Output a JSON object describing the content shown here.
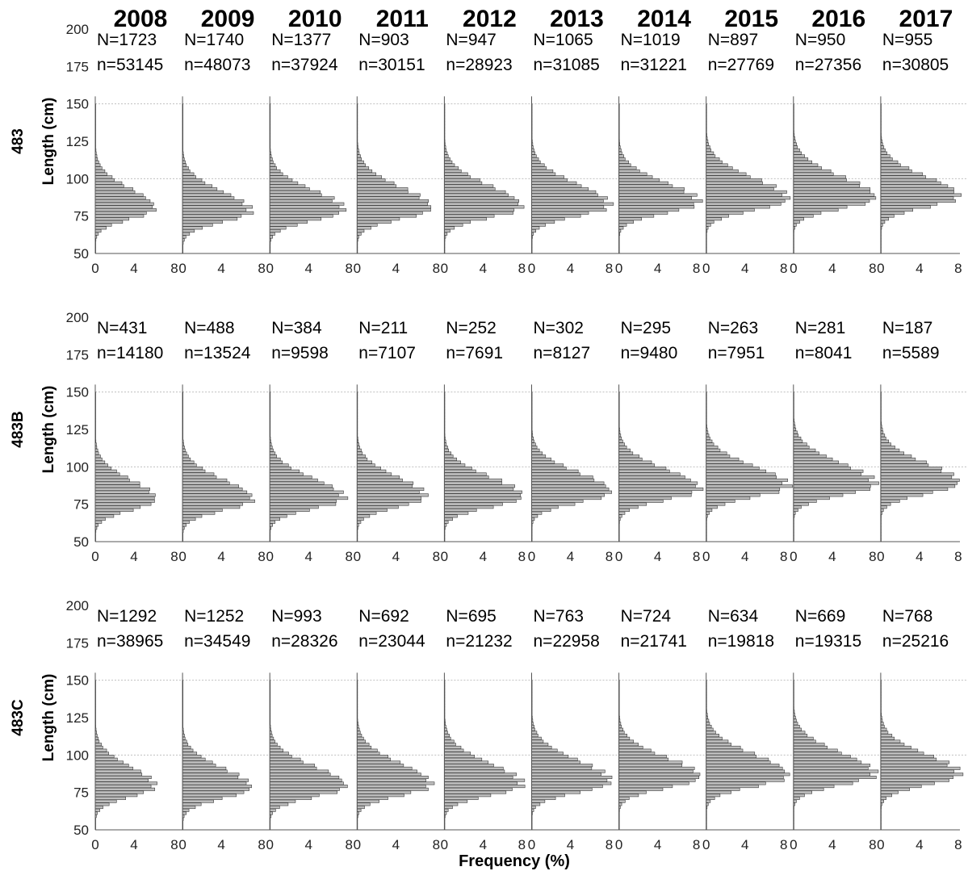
{
  "chart_data": {
    "type": "bar",
    "orientation": "horizontal-histogram",
    "xlabel": "Frequency (%)",
    "ylabel": "Length (cm)",
    "years": [
      "2008",
      "2009",
      "2010",
      "2011",
      "2012",
      "2013",
      "2014",
      "2015",
      "2016",
      "2017"
    ],
    "ylim": [
      50,
      200
    ],
    "yticks": [
      "50",
      "75",
      "100",
      "125",
      "150",
      "175",
      "200"
    ],
    "xticks_full": [
      "0",
      "4",
      "8"
    ],
    "xticks_trunc": [
      "0",
      "4"
    ],
    "xlim": [
      0,
      8
    ],
    "grid_y": [
      100,
      150
    ],
    "rows": [
      {
        "label": "483",
        "N": [
          "N=1723",
          "N=1740",
          "N=1377",
          "N=903",
          "N=947",
          "N=1065",
          "N=1019",
          "N=897",
          "N=950",
          "N=955"
        ],
        "n": [
          "n=53145",
          "n=48073",
          "n=37924",
          "n=30151",
          "n=28923",
          "n=31085",
          "n=31221",
          "n=27769",
          "n=27356",
          "n=30805"
        ],
        "peak": [
          80,
          78,
          79,
          80,
          81,
          82,
          84,
          86,
          87,
          88
        ],
        "max": [
          6.1,
          7.0,
          7.6,
          7.6,
          7.9,
          8.0,
          8.2,
          8.4,
          8.4,
          8.0
        ],
        "sdL": [
          7,
          7,
          7,
          7,
          7,
          7,
          7,
          7,
          7,
          7
        ],
        "sdR": [
          13,
          13,
          13,
          14,
          14,
          14,
          13,
          14,
          14,
          13
        ],
        "xticks_full": [
          false,
          false,
          false,
          false,
          true,
          true,
          true,
          true,
          false,
          true
        ]
      },
      {
        "label": "483B",
        "N": [
          "N=431",
          "N=488",
          "N=384",
          "N=211",
          "N=252",
          "N=302",
          "N=295",
          "N=263",
          "N=281",
          "N=187"
        ],
        "n": [
          "n=14180",
          "n=13524",
          "n=9598",
          "n=7107",
          "n=7691",
          "n=8127",
          "n=9480",
          "n=7951",
          "n=8041",
          "n=5589"
        ],
        "peak": [
          78,
          78,
          79,
          80,
          80,
          83,
          85,
          87,
          88,
          89
        ],
        "max": [
          6.2,
          7.2,
          7.6,
          7.0,
          8.0,
          8.1,
          8.3,
          8.4,
          8.4,
          8.0
        ],
        "sdL": [
          7,
          7,
          7,
          7,
          7,
          7,
          7,
          7,
          7,
          7
        ],
        "sdR": [
          13,
          13,
          13,
          13,
          13,
          13,
          13,
          13,
          14,
          13
        ],
        "xticks_full": [
          false,
          false,
          false,
          false,
          true,
          true,
          true,
          true,
          false,
          true
        ]
      },
      {
        "label": "483C",
        "N": [
          "N=1292",
          "N=1252",
          "N=993",
          "N=692",
          "N=695",
          "N=763",
          "N=724",
          "N=634",
          "N=669",
          "N=768"
        ],
        "n": [
          "n=38965",
          "n=34549",
          "n=28326",
          "n=23044",
          "n=21232",
          "n=22958",
          "n=21741",
          "n=19818",
          "n=19315",
          "n=25216"
        ],
        "peak": [
          79,
          78,
          79,
          80,
          80,
          82,
          85,
          86,
          87,
          87
        ],
        "max": [
          6.1,
          7.0,
          7.8,
          7.6,
          8.0,
          8.1,
          8.3,
          8.4,
          8.4,
          8.1
        ],
        "sdL": [
          7,
          7,
          7,
          7,
          7,
          7,
          7,
          7,
          7,
          7
        ],
        "sdR": [
          13,
          13,
          13,
          14,
          14,
          14,
          13,
          14,
          14,
          13
        ],
        "xticks_full": [
          false,
          false,
          false,
          false,
          true,
          true,
          true,
          true,
          false,
          true
        ]
      }
    ]
  }
}
